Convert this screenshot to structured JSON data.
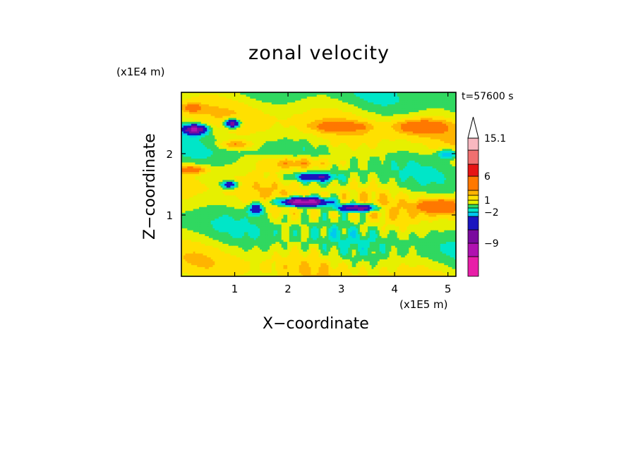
{
  "chart_data": {
    "type": "heatmap",
    "title": "zonal velocity",
    "xlabel": "X−coordinate",
    "ylabel": "Z−coordinate",
    "x_unit": "(x1E5 m)",
    "y_unit": "(x1E4 m)",
    "annotation": "t=57600 s",
    "xlim": [
      0,
      5.15
    ],
    "ylim": [
      0,
      3.0
    ],
    "x_ticks": [
      1,
      2,
      3,
      4,
      5
    ],
    "x_tick_labels": [
      "1",
      "2",
      "3",
      "4",
      "5"
    ],
    "y_ticks": [
      1,
      2
    ],
    "y_tick_labels": [
      "1",
      "2"
    ],
    "colorbar": {
      "levels": [
        -15,
        -12,
        -9,
        -6,
        -3,
        -2,
        -1,
        0,
        1,
        2,
        3,
        6,
        9,
        12,
        15.1
      ],
      "colors": [
        "#e81ea8",
        "#b012b0",
        "#7a0a9e",
        "#1a14c0",
        "#00c8f0",
        "#00e6c8",
        "#30d860",
        "#e6f000",
        "#ffe000",
        "#ffb400",
        "#ff7800",
        "#e61414",
        "#f07070",
        "#f8b8c0"
      ],
      "tick_labels": [
        {
          "value": 15.1,
          "label": "15.1"
        },
        {
          "value": 6,
          "label": "6"
        },
        {
          "value": 1,
          "label": "1"
        },
        {
          "value": -2,
          "label": "−2"
        },
        {
          "value": -9,
          "label": "−9"
        }
      ],
      "extend": "max"
    },
    "grid": false,
    "legend_position": "right"
  }
}
